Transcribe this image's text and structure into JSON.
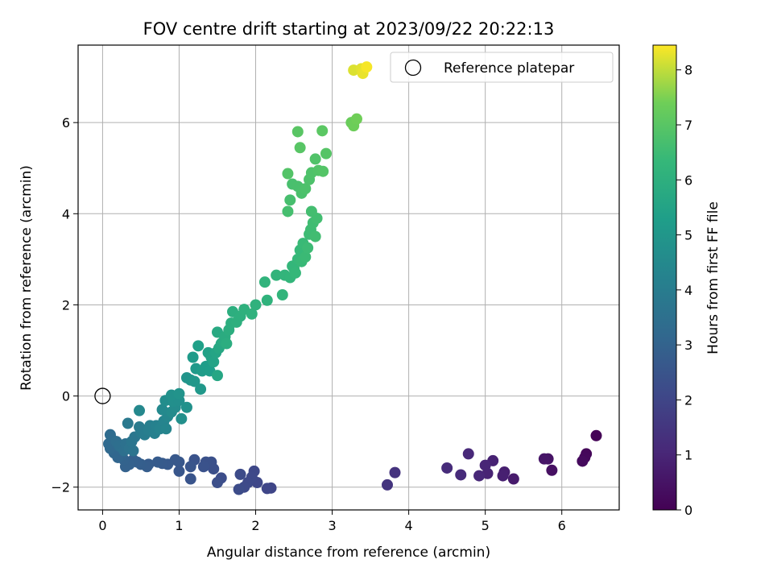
{
  "chart_data": {
    "type": "scatter",
    "title": "FOV centre drift starting at 2023/09/22 20:22:13",
    "xlabel": "Angular distance from reference (arcmin)",
    "ylabel": "Rotation from reference (arcmin)",
    "xlim": [
      -0.32,
      6.75
    ],
    "ylim": [
      -2.5,
      7.7
    ],
    "xticks": [
      0,
      1,
      2,
      3,
      4,
      5,
      6
    ],
    "yticks": [
      -2,
      0,
      2,
      4,
      6
    ],
    "grid": true,
    "legend": {
      "placement": "top-right",
      "entries": [
        "Reference platepar"
      ]
    },
    "colorbar": {
      "label": "Hours from first FF file",
      "colormap": "viridis",
      "range": [
        0,
        8.45
      ],
      "ticks": [
        0,
        1,
        2,
        3,
        4,
        5,
        6,
        7,
        8
      ]
    },
    "reference_point": {
      "x": 0,
      "y": 0
    },
    "series": [
      {
        "columns": [
          "x",
          "y",
          "hours"
        ],
        "points": [
          [
            6.45,
            -0.87,
            0.05
          ],
          [
            6.32,
            -1.27,
            0.15
          ],
          [
            6.3,
            -1.35,
            0.2
          ],
          [
            6.27,
            -1.43,
            0.25
          ],
          [
            5.87,
            -1.63,
            0.4
          ],
          [
            5.82,
            -1.38,
            0.5
          ],
          [
            5.77,
            -1.38,
            0.55
          ],
          [
            5.37,
            -1.82,
            0.7
          ],
          [
            5.25,
            -1.67,
            0.8
          ],
          [
            5.23,
            -1.75,
            0.85
          ],
          [
            5.1,
            -1.42,
            0.9
          ],
          [
            5.03,
            -1.7,
            0.95
          ],
          [
            5.0,
            -1.52,
            1.0
          ],
          [
            4.92,
            -1.75,
            1.05
          ],
          [
            4.78,
            -1.27,
            1.1
          ],
          [
            4.68,
            -1.73,
            1.15
          ],
          [
            4.5,
            -1.58,
            1.2
          ],
          [
            3.82,
            -1.68,
            1.4
          ],
          [
            3.72,
            -1.95,
            1.45
          ],
          [
            2.2,
            -2.02,
            2.0
          ],
          [
            2.15,
            -2.03,
            2.02
          ],
          [
            2.02,
            -1.9,
            2.05
          ],
          [
            1.98,
            -1.65,
            2.07
          ],
          [
            1.95,
            -1.78,
            2.1
          ],
          [
            1.9,
            -1.9,
            2.12
          ],
          [
            1.85,
            -2.0,
            2.15
          ],
          [
            1.8,
            -1.72,
            2.18
          ],
          [
            1.78,
            -2.05,
            2.2
          ],
          [
            1.55,
            -1.8,
            2.25
          ],
          [
            1.5,
            -1.9,
            2.3
          ],
          [
            1.45,
            -1.6,
            2.33
          ],
          [
            1.42,
            -1.45,
            2.36
          ],
          [
            1.35,
            -1.45,
            2.4
          ],
          [
            1.32,
            -1.55,
            2.43
          ],
          [
            1.2,
            -1.4,
            2.46
          ],
          [
            1.15,
            -1.82,
            2.5
          ],
          [
            1.15,
            -1.55,
            2.53
          ],
          [
            1.0,
            -1.65,
            2.56
          ],
          [
            1.0,
            -1.45,
            2.6
          ],
          [
            0.95,
            -1.4,
            2.63
          ],
          [
            0.85,
            -1.5,
            2.66
          ],
          [
            0.78,
            -1.48,
            2.7
          ],
          [
            0.72,
            -1.45,
            2.73
          ],
          [
            0.6,
            -1.5,
            2.76
          ],
          [
            0.58,
            -1.55,
            2.8
          ],
          [
            0.5,
            -1.5,
            2.83
          ],
          [
            0.45,
            -1.45,
            2.86
          ],
          [
            0.4,
            -1.4,
            2.9
          ],
          [
            0.35,
            -1.5,
            2.93
          ],
          [
            0.3,
            -1.55,
            2.96
          ],
          [
            0.28,
            -1.4,
            3.0
          ],
          [
            0.25,
            -1.3,
            3.05
          ],
          [
            0.2,
            -1.35,
            3.1
          ],
          [
            0.15,
            -1.25,
            3.15
          ],
          [
            0.1,
            -1.15,
            3.2
          ],
          [
            0.08,
            -1.05,
            3.25
          ],
          [
            0.12,
            -0.95,
            3.3
          ],
          [
            0.1,
            -0.85,
            3.35
          ],
          [
            0.18,
            -1.0,
            3.4
          ],
          [
            0.22,
            -1.1,
            3.45
          ],
          [
            0.28,
            -1.2,
            3.5
          ],
          [
            0.3,
            -1.05,
            3.55
          ],
          [
            0.35,
            -1.15,
            3.6
          ],
          [
            0.4,
            -1.2,
            3.65
          ],
          [
            0.38,
            -1.0,
            3.7
          ],
          [
            0.42,
            -0.9,
            3.75
          ],
          [
            0.33,
            -0.6,
            3.85
          ],
          [
            0.5,
            -0.8,
            3.9
          ],
          [
            0.48,
            -0.68,
            3.95
          ],
          [
            0.55,
            -0.85,
            4.0
          ],
          [
            0.6,
            -0.75,
            4.05
          ],
          [
            0.62,
            -0.65,
            4.1
          ],
          [
            0.68,
            -0.82,
            4.15
          ],
          [
            0.7,
            -0.65,
            4.2
          ],
          [
            0.75,
            -0.72,
            4.25
          ],
          [
            0.8,
            -0.55,
            4.3
          ],
          [
            0.83,
            -0.72,
            4.35
          ],
          [
            0.85,
            -0.45,
            4.4
          ],
          [
            0.48,
            -0.32,
            4.45
          ],
          [
            0.78,
            -0.3,
            4.5
          ],
          [
            0.9,
            -0.35,
            4.55
          ],
          [
            0.95,
            -0.25,
            4.6
          ],
          [
            0.82,
            -0.1,
            4.65
          ],
          [
            0.92,
            -0.12,
            4.7
          ],
          [
            1.0,
            -0.1,
            4.72
          ],
          [
            1.03,
            -0.5,
            4.75
          ],
          [
            0.9,
            0.02,
            4.78
          ],
          [
            1.1,
            -0.25,
            4.8
          ],
          [
            1.0,
            0.05,
            4.85
          ],
          [
            1.1,
            0.4,
            4.9
          ],
          [
            1.15,
            0.35,
            4.95
          ],
          [
            1.2,
            0.32,
            5.0
          ],
          [
            1.28,
            0.15,
            5.05
          ],
          [
            1.22,
            0.6,
            5.1
          ],
          [
            1.18,
            0.85,
            5.15
          ],
          [
            1.3,
            0.55,
            5.2
          ],
          [
            1.35,
            0.65,
            5.25
          ],
          [
            1.4,
            0.55,
            5.3
          ],
          [
            1.25,
            1.1,
            5.35
          ],
          [
            1.38,
            0.95,
            5.4
          ],
          [
            1.42,
            0.85,
            5.45
          ],
          [
            1.45,
            0.75,
            5.5
          ],
          [
            1.48,
            0.95,
            5.55
          ],
          [
            1.5,
            0.45,
            5.6
          ],
          [
            1.52,
            1.05,
            5.65
          ],
          [
            1.55,
            1.15,
            5.7
          ],
          [
            1.5,
            1.4,
            5.75
          ],
          [
            1.58,
            1.2,
            5.8
          ],
          [
            1.6,
            1.3,
            5.85
          ],
          [
            1.62,
            1.15,
            5.9
          ],
          [
            1.65,
            1.45,
            5.92
          ],
          [
            1.68,
            1.6,
            5.95
          ],
          [
            1.7,
            1.85,
            5.97
          ],
          [
            1.75,
            1.62,
            6.0
          ],
          [
            1.8,
            1.75,
            6.02
          ],
          [
            1.85,
            1.9,
            6.05
          ],
          [
            1.95,
            1.8,
            6.08
          ],
          [
            2.0,
            2.0,
            6.1
          ],
          [
            2.15,
            2.1,
            6.12
          ],
          [
            2.12,
            2.5,
            6.15
          ],
          [
            2.27,
            2.65,
            6.18
          ],
          [
            2.35,
            2.22,
            6.2
          ],
          [
            2.38,
            2.65,
            6.22
          ],
          [
            2.45,
            2.6,
            6.25
          ],
          [
            2.48,
            2.85,
            6.28
          ],
          [
            2.5,
            2.8,
            6.3
          ],
          [
            2.52,
            2.7,
            6.32
          ],
          [
            2.55,
            3.0,
            6.35
          ],
          [
            2.58,
            3.2,
            6.38
          ],
          [
            2.6,
            2.95,
            6.4
          ],
          [
            2.62,
            3.35,
            6.42
          ],
          [
            2.65,
            3.05,
            6.45
          ],
          [
            2.68,
            3.25,
            6.48
          ],
          [
            2.7,
            3.55,
            6.5
          ],
          [
            2.72,
            3.65,
            6.52
          ],
          [
            2.75,
            3.8,
            6.55
          ],
          [
            2.78,
            3.5,
            6.58
          ],
          [
            2.8,
            3.9,
            6.6
          ],
          [
            2.73,
            4.05,
            6.62
          ],
          [
            2.42,
            4.05,
            6.65
          ],
          [
            2.45,
            4.3,
            6.68
          ],
          [
            2.48,
            4.65,
            6.7
          ],
          [
            2.55,
            4.6,
            6.72
          ],
          [
            2.6,
            4.45,
            6.75
          ],
          [
            2.65,
            4.55,
            6.78
          ],
          [
            2.7,
            4.75,
            6.8
          ],
          [
            2.73,
            4.9,
            6.82
          ],
          [
            2.78,
            5.2,
            6.85
          ],
          [
            2.82,
            4.95,
            6.88
          ],
          [
            2.42,
            4.88,
            6.9
          ],
          [
            2.88,
            4.93,
            6.92
          ],
          [
            2.92,
            5.32,
            6.95
          ],
          [
            2.58,
            5.45,
            6.98
          ],
          [
            2.55,
            5.8,
            7.0
          ],
          [
            2.87,
            5.82,
            7.05
          ],
          [
            3.25,
            6.0,
            7.3
          ],
          [
            3.28,
            5.93,
            7.35
          ],
          [
            3.32,
            6.08,
            7.4
          ],
          [
            3.28,
            7.15,
            8.2
          ],
          [
            3.38,
            7.18,
            8.25
          ],
          [
            3.4,
            7.08,
            8.3
          ],
          [
            3.45,
            7.22,
            8.4
          ]
        ]
      }
    ]
  }
}
